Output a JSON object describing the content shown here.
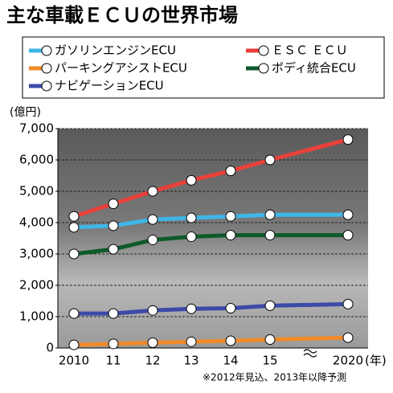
{
  "chart_data": {
    "type": "line",
    "title": "主な車載ＥＣＵの世界市場",
    "y_label": "(億円)",
    "x_unit": "(年)",
    "note": "※2012年見込、2013年以降予測",
    "categories": [
      "2010",
      "11",
      "12",
      "13",
      "14",
      "15",
      "2020"
    ],
    "series": [
      {
        "name": "ガソリンエンジンECU",
        "color": "#3fb6e8",
        "values": [
          3850,
          3900,
          4100,
          4150,
          4200,
          4250,
          4250
        ]
      },
      {
        "name": "ＥＳＣ ＥＣＵ",
        "color": "#e8413a",
        "values": [
          4200,
          4600,
          5000,
          5350,
          5650,
          6000,
          6650
        ]
      },
      {
        "name": "パーキングアシストECU",
        "color": "#f08a2a",
        "values": [
          100,
          130,
          170,
          200,
          230,
          270,
          330
        ]
      },
      {
        "name": "ボディ統合ECU",
        "color": "#0e5a2a",
        "values": [
          3000,
          3150,
          3450,
          3550,
          3600,
          3600,
          3600
        ]
      },
      {
        "name": "ナビゲーションECU",
        "color": "#3c4aa8",
        "values": [
          1100,
          1100,
          1200,
          1250,
          1270,
          1350,
          1400
        ]
      }
    ],
    "ylim": [
      0,
      7000
    ],
    "yticks": [
      0,
      {
        "value": 1000,
        "label": "1,000"
      },
      {
        "value": 2000,
        "label": "2,000"
      },
      {
        "value": 3000,
        "label": "3,000"
      },
      {
        "value": 4000,
        "label": "4,000"
      },
      {
        "value": 5000,
        "label": "5,000"
      },
      {
        "value": 6000,
        "label": "6,000"
      },
      {
        "value": 7000,
        "label": "7,000"
      }
    ],
    "grid": true
  }
}
